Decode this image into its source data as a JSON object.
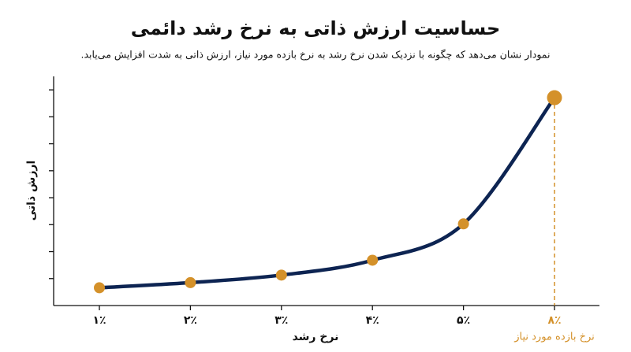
{
  "chart_data": {
    "type": "line",
    "title": "حساسیت ارزش ذاتی به نرخ رشد دائمی",
    "subtitle": "نمودار نشان می‌دهد که چگونه با نزدیک شدن نرخ رشد به نرخ بازده مورد نیاز، ارزش ذاتی به شدت افزایش می‌یابد.",
    "x_label": "نرخ رشد",
    "y_label": "ارزش ذاتی",
    "categories": [
      "۱٪",
      "۲٪",
      "۳٪",
      "۴٪",
      "۵٪",
      "۸٪"
    ],
    "values": [
      0.66,
      0.85,
      1.13,
      1.68,
      3.03,
      7.71
    ],
    "color": "#0d2452",
    "marker_color": "#d4912a",
    "ylim": [
      0,
      8.5
    ],
    "yticks": [
      1,
      2,
      3,
      4,
      5,
      6,
      7,
      8
    ],
    "annotation": "نرخ بازده مورد نیاز",
    "annotation_color": "#d4912a"
  }
}
